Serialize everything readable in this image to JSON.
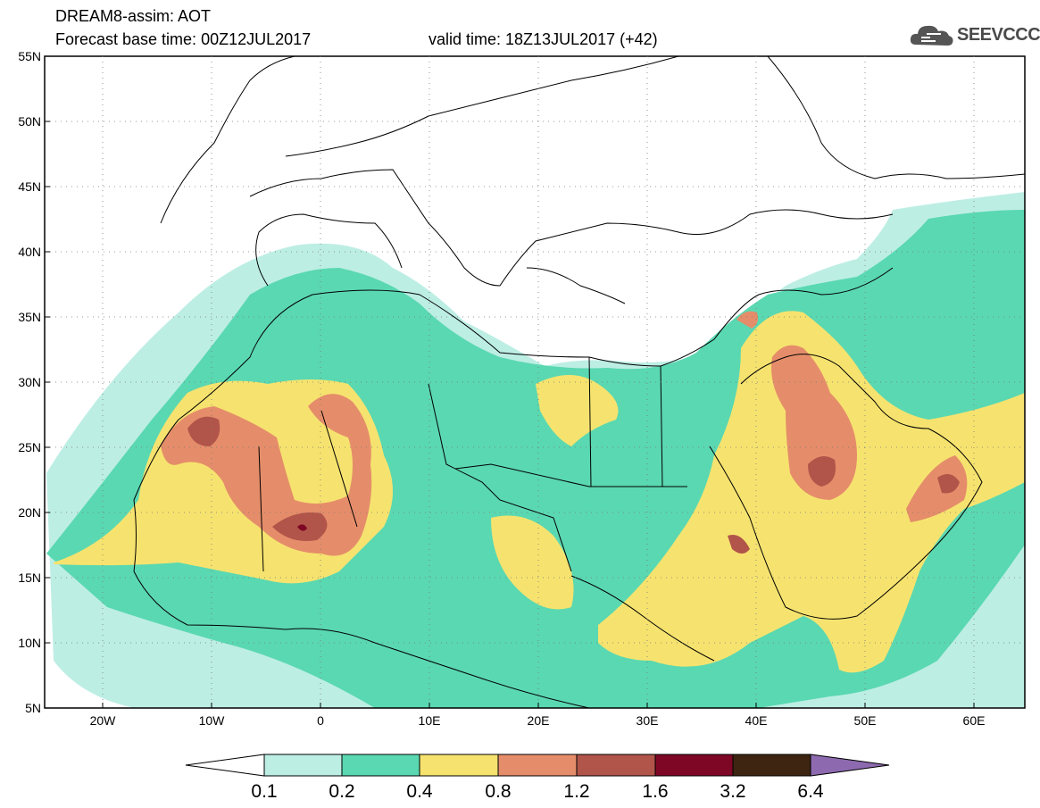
{
  "header": {
    "title": "DREAM8-assim: AOT",
    "base_time": "Forecast base time: 00Z12JUL2017",
    "valid_time": "valid time: 18Z13JUL2017 (+42)"
  },
  "logo": {
    "text": "SEEVCCC",
    "icon": "cloud-icon"
  },
  "map": {
    "region": {
      "lon": [
        -25,
        65
      ],
      "lat": [
        5,
        55
      ]
    },
    "lat_labels": [
      "55N",
      "50N",
      "45N",
      "40N",
      "35N",
      "30N",
      "25N",
      "20N",
      "15N",
      "10N",
      "5N"
    ],
    "lon_labels": [
      "20W",
      "10W",
      "0",
      "10E",
      "20E",
      "30E",
      "40E",
      "50E",
      "60E"
    ],
    "gridlines": "dotted"
  },
  "colorbar": {
    "labels": [
      "0.1",
      "0.2",
      "0.4",
      "0.8",
      "1.2",
      "1.6",
      "3.2",
      "6.4"
    ],
    "colors": {
      "c1": "#bdeee4",
      "c2": "#5ad8b1",
      "c3": "#f6e36f",
      "c4": "#e58d6a",
      "c5": "#b1554a",
      "c6": "#7e0725",
      "c7": "#3d2511",
      "c8": "#8d6ab0"
    }
  }
}
